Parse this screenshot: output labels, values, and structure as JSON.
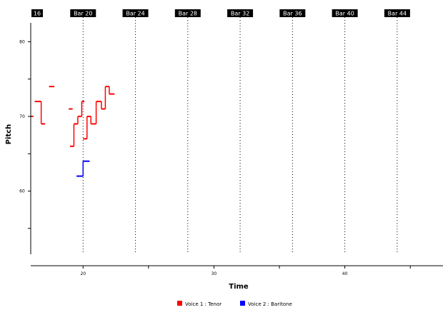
{
  "chart_data": {
    "type": "line",
    "title": "",
    "xlabel": "Time",
    "ylabel": "Pitch",
    "xlim": [
      16,
      47.5
    ],
    "ylim": [
      50,
      81
    ],
    "x_ticks": [
      20,
      25,
      30,
      35,
      40,
      45
    ],
    "x_tick_labels": [
      "20",
      "",
      "30",
      "",
      "40",
      ""
    ],
    "y_ticks": [
      55,
      60,
      65,
      70,
      75,
      80
    ],
    "y_tick_labels": [
      "",
      "60",
      "",
      "70",
      "",
      "80"
    ],
    "bar_markers": [
      {
        "label": "16",
        "time": 16
      },
      {
        "label": "Bar 20",
        "time": 20
      },
      {
        "label": "Bar 24",
        "time": 24
      },
      {
        "label": "Bar 28",
        "time": 28
      },
      {
        "label": "Bar 32",
        "time": 32
      },
      {
        "label": "Bar 36",
        "time": 36
      },
      {
        "label": "Bar 40",
        "time": 40
      },
      {
        "label": "Bar 44",
        "time": 44
      }
    ],
    "grid": false,
    "legend_position": "bottom",
    "series": [
      {
        "name": "Voice 1 : Tenor",
        "color": "#ff0000",
        "notes": [
          [
            16.0,
            16.2,
            70
          ],
          [
            16.3,
            16.8,
            72
          ],
          [
            16.8,
            17.1,
            69
          ],
          [
            17.4,
            17.8,
            74
          ],
          [
            18.9,
            19.2,
            71
          ],
          [
            19.0,
            19.3,
            66
          ],
          [
            19.3,
            19.6,
            69
          ],
          [
            19.6,
            19.9,
            70
          ],
          [
            19.9,
            20.1,
            72
          ],
          [
            20.0,
            20.3,
            67
          ],
          [
            20.3,
            20.6,
            70
          ],
          [
            20.6,
            21.0,
            69
          ],
          [
            21.0,
            21.4,
            72
          ],
          [
            21.4,
            21.7,
            71
          ],
          [
            21.7,
            22.0,
            74
          ],
          [
            22.0,
            22.4,
            73
          ]
        ]
      },
      {
        "name": "Voice 2 : Baritone",
        "color": "#0000ff",
        "notes": [
          [
            19.5,
            20.0,
            62
          ],
          [
            20.0,
            20.5,
            64
          ]
        ]
      }
    ]
  }
}
